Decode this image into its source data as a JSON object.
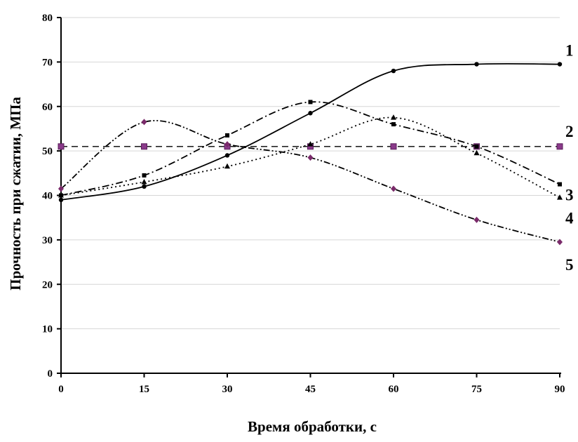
{
  "chart_data": {
    "type": "line",
    "title": "",
    "xlabel": "Время обработки, с",
    "ylabel": "Прочность при сжатии, МПа",
    "xlim": [
      0,
      90
    ],
    "ylim": [
      0,
      80
    ],
    "xticks": [
      "0",
      "15",
      "30",
      "45",
      "60",
      "75",
      "90"
    ],
    "yticks": [
      "0",
      "10",
      "20",
      "30",
      "40",
      "50",
      "60",
      "70",
      "80"
    ],
    "grid": "horizontal",
    "x": [
      0,
      15,
      30,
      45,
      60,
      75,
      90
    ],
    "series": [
      {
        "name": "1",
        "values": [
          39,
          42,
          49,
          58.5,
          68,
          69.5,
          69.5
        ],
        "color": "#000000",
        "marker": "circle",
        "line": "solid"
      },
      {
        "name": "2",
        "values": [
          51,
          51,
          51,
          51,
          51,
          51,
          51
        ],
        "color": "#000000",
        "marker": "square",
        "line": "dashed"
      },
      {
        "name": "3",
        "values": [
          40,
          44.5,
          53.5,
          61,
          56,
          51,
          42.5
        ],
        "color": "#000000",
        "marker": "square",
        "line": "dash-dot"
      },
      {
        "name": "4",
        "values": [
          40,
          43,
          46.5,
          51.5,
          57.5,
          49.5,
          39.5
        ],
        "color": "#000000",
        "marker": "triangle",
        "line": "dotted"
      },
      {
        "name": "5",
        "values": [
          41.5,
          56.5,
          51.5,
          48.5,
          41.5,
          34.5,
          29.5
        ],
        "color": "#000000",
        "marker": "diamond",
        "line": "dash-dot-dot"
      }
    ]
  }
}
